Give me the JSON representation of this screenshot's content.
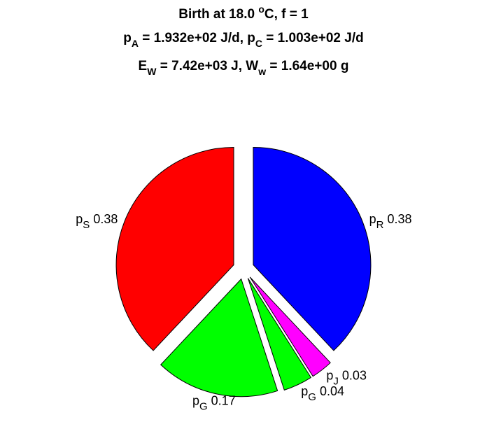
{
  "chart_data": {
    "type": "pie",
    "title": [
      [
        {
          "text": "Birth at 18.0 "
        },
        {
          "sup": "o"
        },
        {
          "text": "C, f = 1"
        }
      ],
      [
        {
          "text": "p"
        },
        {
          "sub": "A"
        },
        {
          "text": " = 1.932e+02 J/d, p"
        },
        {
          "sub": "C"
        },
        {
          "text": " = 1.003e+02 J/d"
        }
      ],
      [
        {
          "text": "E"
        },
        {
          "sub": "W"
        },
        {
          "text": " = 7.42e+03 J, W"
        },
        {
          "sub": "w"
        },
        {
          "text": " = 1.64e+00 g"
        }
      ]
    ],
    "categories": [
      {
        "text": "p",
        "sub": "R"
      },
      {
        "text": "p",
        "sub": "J"
      },
      {
        "text": "p",
        "sub": "G"
      },
      {
        "text": "p",
        "sub": "G"
      },
      {
        "text": "p",
        "sub": "S"
      }
    ],
    "values": [
      0.38,
      0.03,
      0.04,
      0.17,
      0.38
    ],
    "value_labels": [
      "0.38",
      "0.03",
      "0.04",
      "0.17",
      "0.38"
    ],
    "colors": [
      "#0000ff",
      "#ff00ff",
      "#00ff00",
      "#00ff00",
      "#ff0000"
    ]
  }
}
